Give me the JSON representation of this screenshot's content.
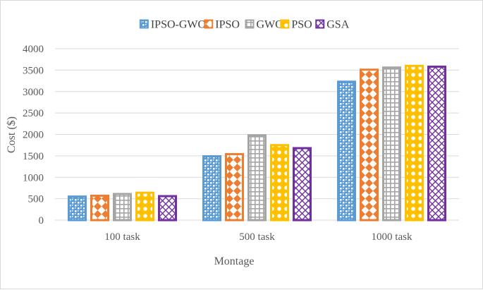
{
  "chart_data": {
    "type": "bar",
    "title": "",
    "xlabel": "Montage",
    "ylabel": "Cost ($)",
    "ylim": [
      0,
      4000
    ],
    "yticks": [
      0,
      500,
      1000,
      1500,
      2000,
      2500,
      3000,
      3500,
      4000
    ],
    "grid": true,
    "legend_position": "top",
    "categories": [
      "100 task",
      "500 task",
      "1000 task"
    ],
    "series": [
      {
        "name": "IPSO-GWO",
        "color": "#5b9bd5",
        "values": [
          550,
          1490,
          3230
        ]
      },
      {
        "name": "IPSO",
        "color": "#ed7d31",
        "values": [
          570,
          1540,
          3510
        ]
      },
      {
        "name": "GWO",
        "color": "#a5a5a5",
        "values": [
          610,
          1980,
          3560
        ]
      },
      {
        "name": "PSO",
        "color": "#ffc000",
        "values": [
          640,
          1750,
          3600
        ]
      },
      {
        "name": "GSA",
        "color": "#7030a0",
        "values": [
          560,
          1680,
          3580
        ]
      }
    ]
  }
}
